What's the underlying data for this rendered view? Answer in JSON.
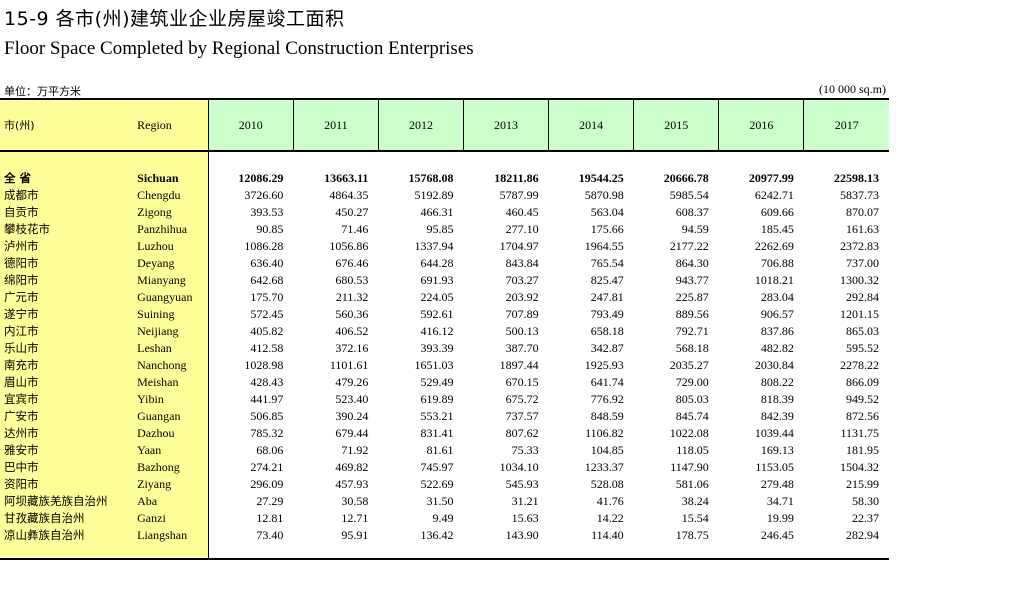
{
  "title_cn": "15-9 各市(州)建筑业企业房屋竣工面积",
  "title_en": "Floor Space Completed by Regional Construction Enterprises",
  "unit_cn": "单位：万平方米",
  "unit_en": "(10 000 sq.m)",
  "header": {
    "region_cn": "市(州)",
    "region_en": "Region",
    "years": [
      "2010",
      "2011",
      "2012",
      "2013",
      "2014",
      "2015",
      "2016",
      "2017"
    ]
  },
  "rows": [
    {
      "cn": "全 省",
      "en": "Sichuan",
      "values": [
        "12086.29",
        "13663.11",
        "15768.08",
        "18211.86",
        "19544.25",
        "20666.78",
        "20977.99",
        "22598.13"
      ]
    },
    {
      "cn": "成都市",
      "en": "Chengdu",
      "values": [
        "3726.60",
        "4864.35",
        "5192.89",
        "5787.99",
        "5870.98",
        "5985.54",
        "6242.71",
        "5837.73"
      ]
    },
    {
      "cn": "自贡市",
      "en": "Zigong",
      "values": [
        "393.53",
        "450.27",
        "466.31",
        "460.45",
        "563.04",
        "608.37",
        "609.66",
        "870.07"
      ]
    },
    {
      "cn": "攀枝花市",
      "en": "Panzhihua",
      "values": [
        "90.85",
        "71.46",
        "95.85",
        "277.10",
        "175.66",
        "94.59",
        "185.45",
        "161.63"
      ]
    },
    {
      "cn": "泸州市",
      "en": "Luzhou",
      "values": [
        "1086.28",
        "1056.86",
        "1337.94",
        "1704.97",
        "1964.55",
        "2177.22",
        "2262.69",
        "2372.83"
      ]
    },
    {
      "cn": "德阳市",
      "en": "Deyang",
      "values": [
        "636.40",
        "676.46",
        "644.28",
        "843.84",
        "765.54",
        "864.30",
        "706.88",
        "737.00"
      ]
    },
    {
      "cn": "绵阳市",
      "en": "Mianyang",
      "values": [
        "642.68",
        "680.53",
        "691.93",
        "703.27",
        "825.47",
        "943.77",
        "1018.21",
        "1300.32"
      ]
    },
    {
      "cn": "广元市",
      "en": "Guangyuan",
      "values": [
        "175.70",
        "211.32",
        "224.05",
        "203.92",
        "247.81",
        "225.87",
        "283.04",
        "292.84"
      ]
    },
    {
      "cn": "遂宁市",
      "en": "Suining",
      "values": [
        "572.45",
        "560.36",
        "592.61",
        "707.89",
        "793.49",
        "889.56",
        "906.57",
        "1201.15"
      ]
    },
    {
      "cn": "内江市",
      "en": "Neijiang",
      "values": [
        "405.82",
        "406.52",
        "416.12",
        "500.13",
        "658.18",
        "792.71",
        "837.86",
        "865.03"
      ]
    },
    {
      "cn": "乐山市",
      "en": "Leshan",
      "values": [
        "412.58",
        "372.16",
        "393.39",
        "387.70",
        "342.87",
        "568.18",
        "482.82",
        "595.52"
      ]
    },
    {
      "cn": "南充市",
      "en": "Nanchong",
      "values": [
        "1028.98",
        "1101.61",
        "1651.03",
        "1897.44",
        "1925.93",
        "2035.27",
        "2030.84",
        "2278.22"
      ]
    },
    {
      "cn": "眉山市",
      "en": "Meishan",
      "values": [
        "428.43",
        "479.26",
        "529.49",
        "670.15",
        "641.74",
        "729.00",
        "808.22",
        "866.09"
      ]
    },
    {
      "cn": "宜宾市",
      "en": "Yibin",
      "values": [
        "441.97",
        "523.40",
        "619.89",
        "675.72",
        "776.92",
        "805.03",
        "818.39",
        "949.52"
      ]
    },
    {
      "cn": "广安市",
      "en": "Guangan",
      "values": [
        "506.85",
        "390.24",
        "553.21",
        "737.57",
        "848.59",
        "845.74",
        "842.39",
        "872.56"
      ]
    },
    {
      "cn": "达州市",
      "en": "Dazhou",
      "values": [
        "785.32",
        "679.44",
        "831.41",
        "807.62",
        "1106.82",
        "1022.08",
        "1039.44",
        "1131.75"
      ]
    },
    {
      "cn": "雅安市",
      "en": "Yaan",
      "values": [
        "68.06",
        "71.92",
        "81.61",
        "75.33",
        "104.85",
        "118.05",
        "169.13",
        "181.95"
      ]
    },
    {
      "cn": "巴中市",
      "en": "Bazhong",
      "values": [
        "274.21",
        "469.82",
        "745.97",
        "1034.10",
        "1233.37",
        "1147.90",
        "1153.05",
        "1504.32"
      ]
    },
    {
      "cn": "资阳市",
      "en": "Ziyang",
      "values": [
        "296.09",
        "457.93",
        "522.69",
        "545.93",
        "528.08",
        "581.06",
        "279.48",
        "215.99"
      ]
    },
    {
      "cn": "阿坝藏族羌族自治州",
      "en": "Aba",
      "values": [
        "27.29",
        "30.58",
        "31.50",
        "31.21",
        "41.76",
        "38.24",
        "34.71",
        "58.30"
      ]
    },
    {
      "cn": "甘孜藏族自治州",
      "en": "Ganzi",
      "values": [
        "12.81",
        "12.71",
        "9.49",
        "15.63",
        "14.22",
        "15.54",
        "19.99",
        "22.37"
      ]
    },
    {
      "cn": "凉山彝族自治州",
      "en": "Liangshan",
      "values": [
        "73.40",
        "95.91",
        "136.42",
        "143.90",
        "114.40",
        "178.75",
        "246.45",
        "282.94"
      ]
    }
  ]
}
